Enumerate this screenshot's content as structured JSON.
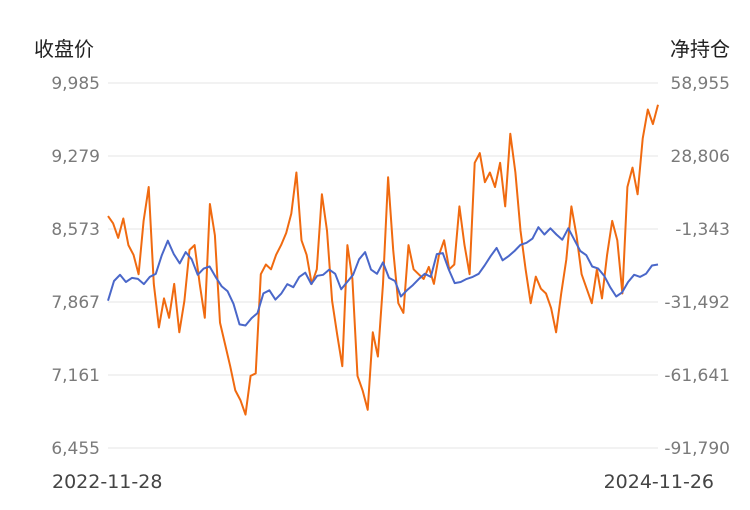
{
  "chart_data": {
    "type": "line",
    "left_axis_title": "收盘价",
    "right_axis_title": "净持仓",
    "left_ticks": [
      "9,985",
      "9,279",
      "8,573",
      "7,867",
      "7,161",
      "6,455"
    ],
    "right_ticks": [
      "58,955",
      "28,806",
      "-1,343",
      "-31,492",
      "-61,641",
      "-91,790"
    ],
    "ylim_left": [
      6455,
      9985
    ],
    "ylim_right": [
      -91790,
      58955
    ],
    "x_start_label": "2022-11-28",
    "x_end_label": "2024-11-26",
    "grid": "horizontal",
    "series": [
      {
        "axis": "left",
        "color": "#4a67c9",
        "values": [
          7880,
          8070,
          8130,
          8060,
          8100,
          8090,
          8040,
          8110,
          8140,
          8320,
          8460,
          8330,
          8240,
          8350,
          8280,
          8130,
          8190,
          8210,
          8110,
          8020,
          7970,
          7850,
          7650,
          7640,
          7710,
          7760,
          7950,
          7980,
          7890,
          7950,
          8040,
          8010,
          8110,
          8150,
          8040,
          8120,
          8130,
          8180,
          8140,
          7990,
          8060,
          8130,
          8280,
          8350,
          8180,
          8140,
          8250,
          8100,
          8070,
          7920,
          7980,
          8030,
          8090,
          8140,
          8110,
          8330,
          8340,
          8180,
          8050,
          8060,
          8090,
          8110,
          8140,
          8220,
          8310,
          8390,
          8270,
          8310,
          8360,
          8420,
          8440,
          8480,
          8590,
          8520,
          8580,
          8520,
          8470,
          8580,
          8470,
          8360,
          8320,
          8210,
          8190,
          8120,
          8010,
          7920,
          7960,
          8060,
          8130,
          8110,
          8140,
          8220,
          8230
        ]
      },
      {
        "axis": "right",
        "color": "#f06a10",
        "values": [
          4000,
          1000,
          -5000,
          3000,
          -8000,
          -12000,
          -20000,
          2000,
          16000,
          -24000,
          -42000,
          -30000,
          -38000,
          -24000,
          -44000,
          -31000,
          -10000,
          -8000,
          -24000,
          -38000,
          9000,
          -4000,
          -40000,
          -49000,
          -58000,
          -68000,
          -72000,
          -78000,
          -62000,
          -61000,
          -20000,
          -16000,
          -18000,
          -12000,
          -8000,
          -3000,
          5000,
          22000,
          -6000,
          -12000,
          -24000,
          -18000,
          13000,
          -2000,
          -31000,
          -45000,
          -58000,
          -8000,
          -22000,
          -62000,
          -68000,
          -76000,
          -44000,
          -54000,
          -24000,
          20000,
          -10000,
          -32000,
          -36000,
          -8000,
          -18000,
          -20000,
          -22000,
          -17000,
          -24000,
          -12000,
          -6000,
          -18000,
          -16000,
          8000,
          -8000,
          -20000,
          26000,
          30000,
          18000,
          22000,
          16000,
          26000,
          8000,
          38000,
          22000,
          -2000,
          -18000,
          -32000,
          -21000,
          -26000,
          -28000,
          -34000,
          -44000,
          -28000,
          -14000,
          8000,
          -4000,
          -20000,
          -26000,
          -32000,
          -18000,
          -30000,
          -12000,
          2000,
          -6000,
          -28000,
          16000,
          24000,
          13000,
          36000,
          48000,
          42000,
          50000
        ]
      }
    ]
  }
}
